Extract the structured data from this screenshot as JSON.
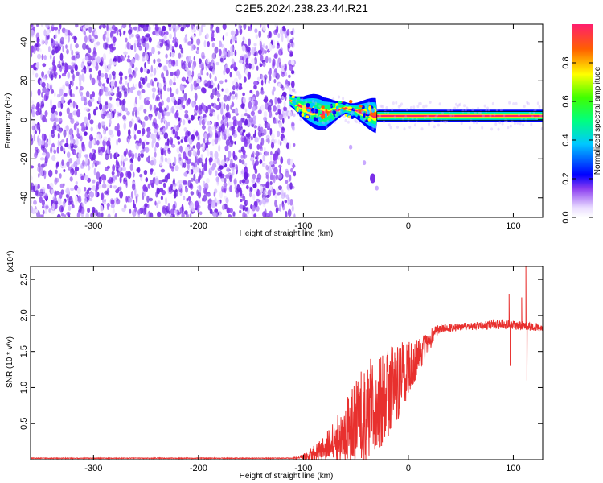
{
  "title": "C2E5.2024.238.23.44.R21",
  "chart_data": [
    {
      "type": "heatmap",
      "xlabel": "Height of straight line (km)",
      "ylabel": "Frequency (Hz)",
      "xlim": [
        -360,
        128
      ],
      "ylim": [
        -50,
        49
      ],
      "xticks": [
        -300,
        -200,
        -100,
        0,
        100
      ],
      "yticks": [
        -40,
        -20,
        0,
        20,
        40
      ],
      "colorbar": {
        "label": "Normalized spectral amplitude",
        "range": [
          0,
          1
        ],
        "ticks": [
          0.0,
          0.2,
          0.4,
          0.6,
          0.8
        ]
      },
      "noise_region_x": [
        -360,
        -113
      ],
      "ridge": [
        {
          "x": -113,
          "f": 10
        },
        {
          "x": -100,
          "f": 6
        },
        {
          "x": -80,
          "f": 3
        },
        {
          "x": -60,
          "f": 6
        },
        {
          "x": -45,
          "f": 4
        },
        {
          "x": -30,
          "f": 2
        },
        {
          "x": 0,
          "f": 2
        },
        {
          "x": 60,
          "f": 2
        },
        {
          "x": 90,
          "f": 2
        },
        {
          "x": 128,
          "f": 2
        }
      ],
      "branch": [
        {
          "x": -55,
          "f": -14
        },
        {
          "x": -42,
          "f": -22
        },
        {
          "x": -34,
          "f": -30
        },
        {
          "x": -30,
          "f": -35
        }
      ]
    },
    {
      "type": "line",
      "xlabel": "Height of straight line (km)",
      "ylabel": "SNR (10 * v/v)",
      "y_multiplier": "(x10⁴)",
      "xlim": [
        -360,
        128
      ],
      "ylim": [
        0,
        2.68
      ],
      "xticks": [
        -300,
        -200,
        -100,
        0,
        100
      ],
      "yticks": [
        0.5,
        1.0,
        1.5,
        2.0,
        2.5
      ],
      "color": "#e8302e",
      "envelope": [
        {
          "x": -360,
          "base": 0.02,
          "amp": 0.0
        },
        {
          "x": -110,
          "base": 0.02,
          "amp": 0.0
        },
        {
          "x": -100,
          "base": 0.04,
          "amp": 0.04
        },
        {
          "x": -85,
          "base": 0.1,
          "amp": 0.15
        },
        {
          "x": -70,
          "base": 0.25,
          "amp": 0.3
        },
        {
          "x": -55,
          "base": 0.45,
          "amp": 0.55
        },
        {
          "x": -40,
          "base": 0.65,
          "amp": 0.7
        },
        {
          "x": -25,
          "base": 0.85,
          "amp": 0.7
        },
        {
          "x": -10,
          "base": 1.1,
          "amp": 0.55
        },
        {
          "x": 5,
          "base": 1.35,
          "amp": 0.3
        },
        {
          "x": 20,
          "base": 1.65,
          "amp": 0.15
        },
        {
          "x": 30,
          "base": 1.82,
          "amp": 0.06
        },
        {
          "x": 60,
          "base": 1.85,
          "amp": 0.05
        },
        {
          "x": 90,
          "base": 1.88,
          "amp": 0.07
        },
        {
          "x": 128,
          "base": 1.83,
          "amp": 0.05
        }
      ],
      "spikes": [
        {
          "x": 96,
          "y": 2.3
        },
        {
          "x": 97,
          "y": 1.3
        },
        {
          "x": 108,
          "y": 2.25
        },
        {
          "x": 112,
          "y": 2.68
        },
        {
          "x": 113,
          "y": 1.1
        }
      ]
    }
  ]
}
